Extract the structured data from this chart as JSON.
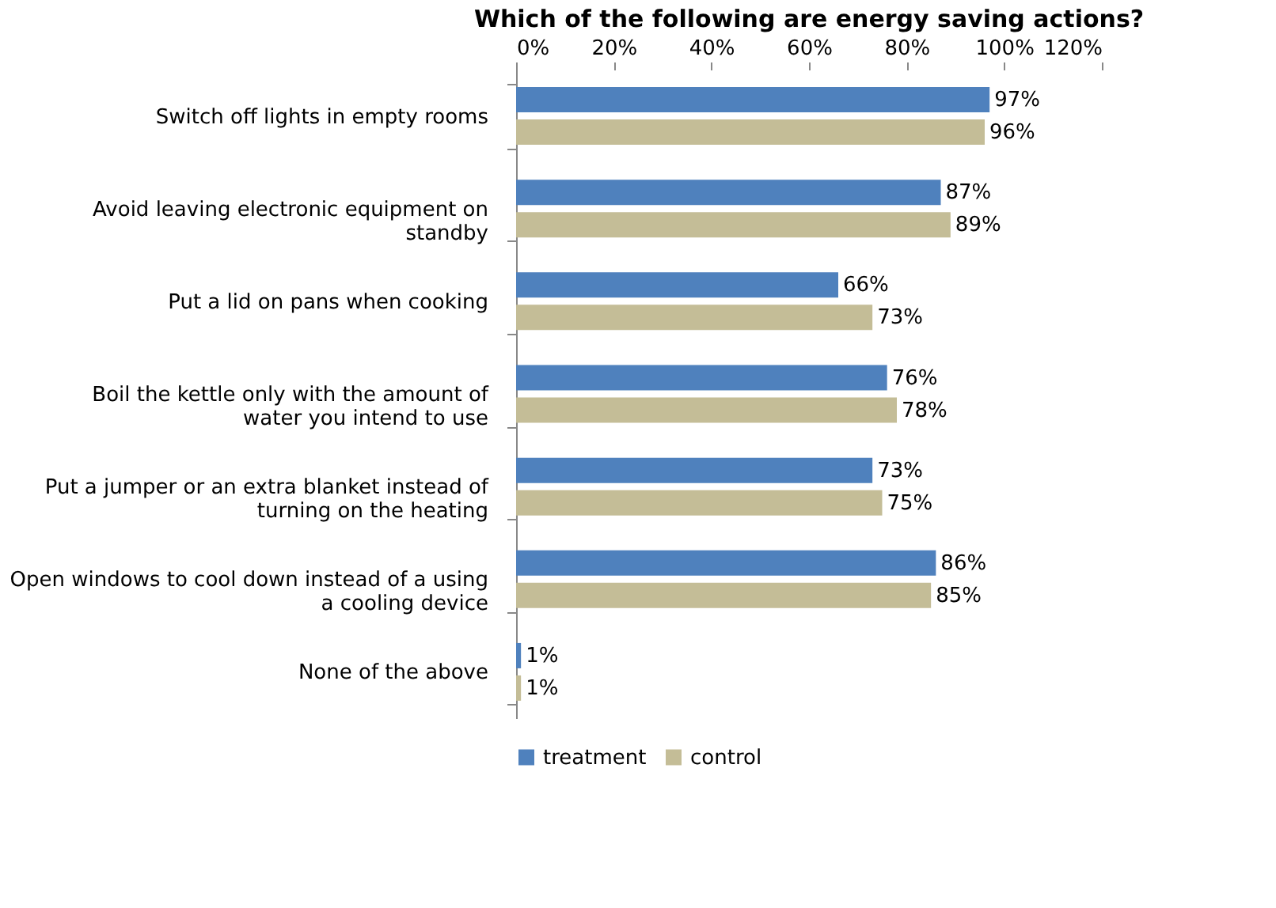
{
  "chart_data": {
    "type": "bar",
    "orientation": "horizontal",
    "title": "Which of the following are energy saving actions?",
    "categories": [
      "Switch off lights in empty rooms",
      "Avoid leaving electronic equipment on standby",
      "Put a lid on pans when cooking",
      "Boil the kettle only with the amount of water you intend to use",
      "Put a jumper or an extra blanket instead of turning on the heating",
      "Open windows to cool down instead of a using a cooling device",
      "None of the above"
    ],
    "series": [
      {
        "name": "treatment",
        "color": "#4f81bd",
        "values": [
          97,
          87,
          66,
          76,
          73,
          86,
          1
        ],
        "value_labels": [
          "97%",
          "87%",
          "66%",
          "76%",
          "73%",
          "86%",
          "1%"
        ]
      },
      {
        "name": "control",
        "color": "#c4bd97",
        "values": [
          96,
          89,
          73,
          78,
          75,
          85,
          1
        ],
        "value_labels": [
          "96%",
          "89%",
          "73%",
          "78%",
          "75%",
          "85%",
          "1%"
        ]
      }
    ],
    "xlim": [
      0,
      120
    ],
    "xticks": [
      {
        "value": 0,
        "label": "0%"
      },
      {
        "value": 20,
        "label": "20%"
      },
      {
        "value": 40,
        "label": "40%"
      },
      {
        "value": 60,
        "label": "60%"
      },
      {
        "value": 80,
        "label": "80%"
      },
      {
        "value": 100,
        "label": "100%"
      },
      {
        "value": 120,
        "label": "120%"
      }
    ],
    "grid": false,
    "legend": "bottom"
  }
}
